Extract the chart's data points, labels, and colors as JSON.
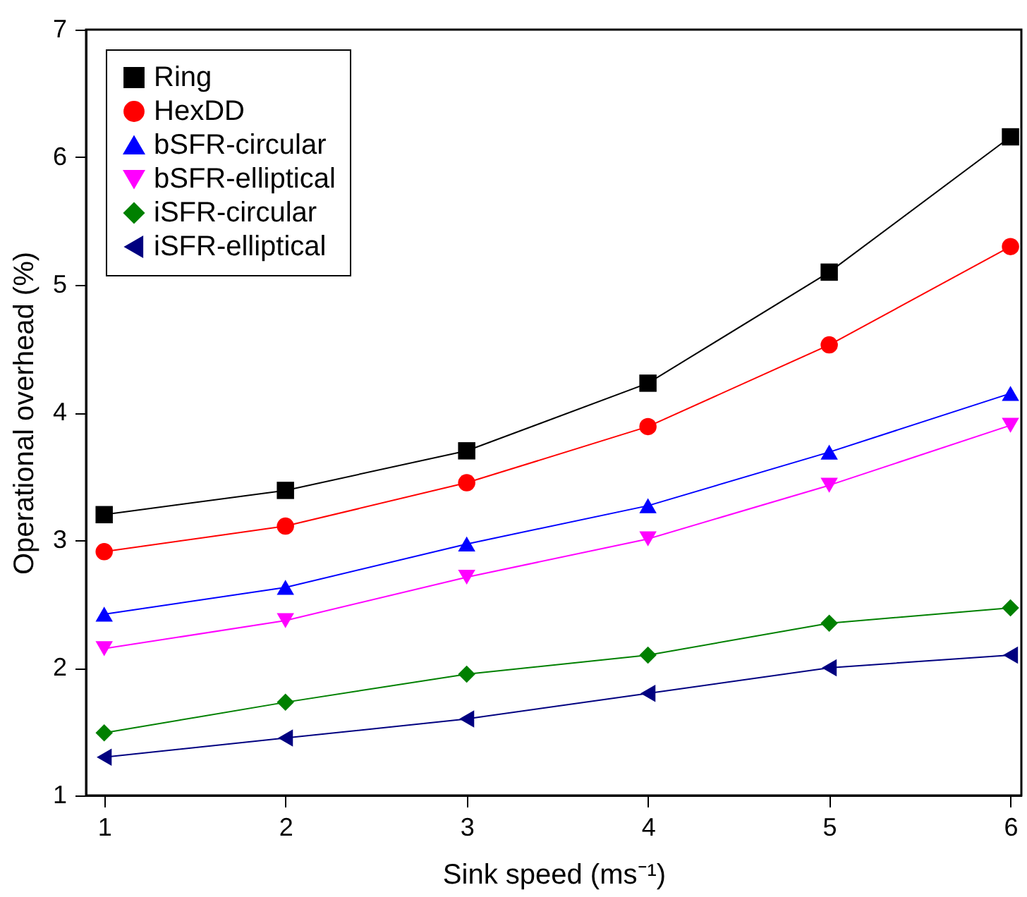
{
  "chart_data": {
    "type": "line",
    "xlabel": "Sink speed (ms⁻¹)",
    "ylabel": "Operational overhead (%)",
    "x": [
      1,
      2,
      3,
      4,
      5,
      6
    ],
    "xlim": [
      0.9,
      6.06
    ],
    "xticks": [
      1,
      2,
      3,
      4,
      5,
      6
    ],
    "ylim": [
      1,
      7
    ],
    "yticks": [
      1,
      2,
      3,
      4,
      5,
      6,
      7
    ],
    "grid": false,
    "legend": "top left",
    "line_style": "solid",
    "series": [
      {
        "name": "Ring",
        "color": "#000000",
        "marker": "square",
        "values": [
          3.2,
          3.39,
          3.7,
          4.23,
          5.1,
          6.16
        ]
      },
      {
        "name": "HexDD",
        "color": "#ff0000",
        "marker": "circle",
        "values": [
          2.91,
          3.11,
          3.45,
          3.89,
          4.53,
          5.3
        ]
      },
      {
        "name": "bSFR-circular",
        "color": "#0000ff",
        "marker": "triangle",
        "values": [
          2.42,
          2.63,
          2.97,
          3.27,
          3.69,
          4.15
        ]
      },
      {
        "name": "bSFR-elliptical",
        "color": "#ff00ff",
        "marker": "triangle-down",
        "values": [
          2.15,
          2.37,
          2.71,
          3.01,
          3.43,
          3.9
        ]
      },
      {
        "name": "iSFR-circular",
        "color": "#008000",
        "marker": "diamond",
        "values": [
          1.49,
          1.73,
          1.95,
          2.1,
          2.35,
          2.47
        ]
      },
      {
        "name": "iSFR-elliptical",
        "color": "#000080",
        "marker": "triangle-left",
        "values": [
          1.3,
          1.45,
          1.6,
          1.8,
          2.0,
          2.1
        ]
      }
    ]
  }
}
